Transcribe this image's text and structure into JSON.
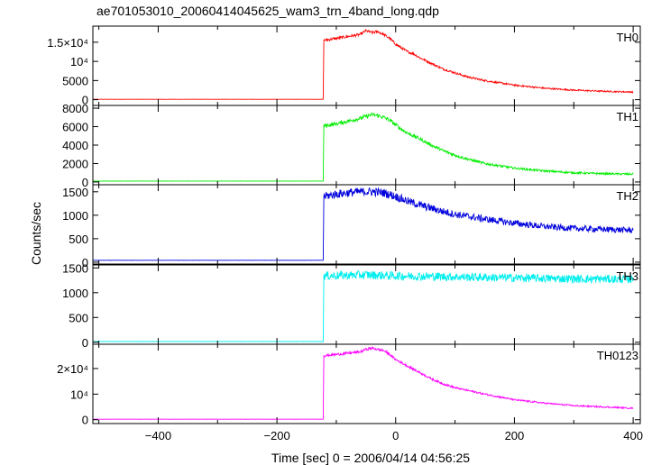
{
  "chart_data": {
    "type": "line",
    "title": "ae701053010_20060414045625_wam3_trn_4band_long.qdp",
    "xlabel": "Time [sec] 0 = 2006/04/14 04:56:25",
    "ylabel": "Counts/sec",
    "xlim": [
      -510,
      412
    ],
    "x_ticks": [
      -400,
      -200,
      0,
      200,
      400
    ],
    "grid": false,
    "panels": [
      {
        "name": "TH0",
        "color": "#ff0000",
        "ylim": [
          -1500,
          19200
        ],
        "y_ticks": [
          0,
          5000,
          10000,
          15000
        ],
        "y_tick_labels": [
          "0",
          "5000",
          "10⁴",
          "1.5×10⁴"
        ],
        "x": [
          -510,
          -122,
          -121,
          -100,
          -80,
          -60,
          -50,
          -40,
          -30,
          -20,
          -10,
          0,
          10,
          20,
          30,
          40,
          60,
          80,
          100,
          120,
          150,
          200,
          250,
          300,
          350,
          400
        ],
        "y": [
          100,
          100,
          15500,
          16000,
          16500,
          17000,
          18000,
          17500,
          17800,
          17000,
          16000,
          14500,
          13500,
          12500,
          12000,
          11000,
          9500,
          8000,
          7000,
          6000,
          5000,
          3800,
          3000,
          2500,
          2200,
          2000
        ]
      },
      {
        "name": "TH1",
        "color": "#00ee00",
        "ylim": [
          -300,
          8300
        ],
        "y_ticks": [
          0,
          2000,
          4000,
          6000,
          8000
        ],
        "y_tick_labels": [
          "0",
          "2000",
          "4000",
          "6000",
          "8000"
        ],
        "x": [
          -510,
          -122,
          -121,
          -100,
          -80,
          -60,
          -50,
          -40,
          -30,
          -20,
          -10,
          0,
          10,
          20,
          30,
          40,
          60,
          80,
          100,
          120,
          150,
          200,
          250,
          300,
          350,
          400
        ],
        "y": [
          100,
          100,
          6100,
          6300,
          6600,
          6900,
          7100,
          7300,
          7200,
          7000,
          6700,
          6200,
          5700,
          5300,
          5000,
          4700,
          4000,
          3400,
          2900,
          2500,
          2000,
          1500,
          1200,
          1000,
          900,
          850
        ]
      },
      {
        "name": "TH2",
        "color": "#0000dd",
        "ylim": [
          -40,
          1650
        ],
        "y_ticks": [
          0,
          500,
          1000,
          1500
        ],
        "y_tick_labels": [
          "0",
          "500",
          "1000",
          "1500"
        ],
        "x": [
          -510,
          -122,
          -121,
          -100,
          -80,
          -60,
          -40,
          -20,
          0,
          20,
          40,
          60,
          80,
          100,
          150,
          200,
          250,
          300,
          350,
          400
        ],
        "y": [
          40,
          40,
          1400,
          1450,
          1480,
          1500,
          1500,
          1480,
          1400,
          1300,
          1220,
          1150,
          1080,
          1020,
          920,
          830,
          760,
          720,
          700,
          680
        ]
      },
      {
        "name": "TH3",
        "color": "#00eeee",
        "ylim": [
          -40,
          1560
        ],
        "y_ticks": [
          0,
          500,
          1000,
          1500
        ],
        "y_tick_labels": [
          "0",
          "500",
          "1000",
          "1500"
        ],
        "x": [
          -510,
          -122,
          -121,
          -50,
          0,
          100,
          200,
          300,
          400
        ],
        "y": [
          15,
          15,
          1340,
          1360,
          1340,
          1320,
          1300,
          1280,
          1270
        ]
      },
      {
        "name": "TH0123",
        "color": "#ff00ff",
        "ylim": [
          -1500,
          29500
        ],
        "y_ticks": [
          0,
          10000,
          20000
        ],
        "y_tick_labels": [
          "0",
          "10⁴",
          "2×10⁴"
        ],
        "x": [
          -510,
          -122,
          -121,
          -100,
          -80,
          -60,
          -50,
          -40,
          -30,
          -20,
          -10,
          0,
          20,
          40,
          60,
          80,
          100,
          150,
          200,
          250,
          300,
          350,
          400
        ],
        "y": [
          200,
          200,
          25000,
          25500,
          26000,
          26500,
          27500,
          28000,
          27500,
          27000,
          25500,
          23500,
          21000,
          18500,
          16000,
          14000,
          12500,
          10000,
          7800,
          6500,
          5500,
          5000,
          4500
        ]
      }
    ]
  }
}
